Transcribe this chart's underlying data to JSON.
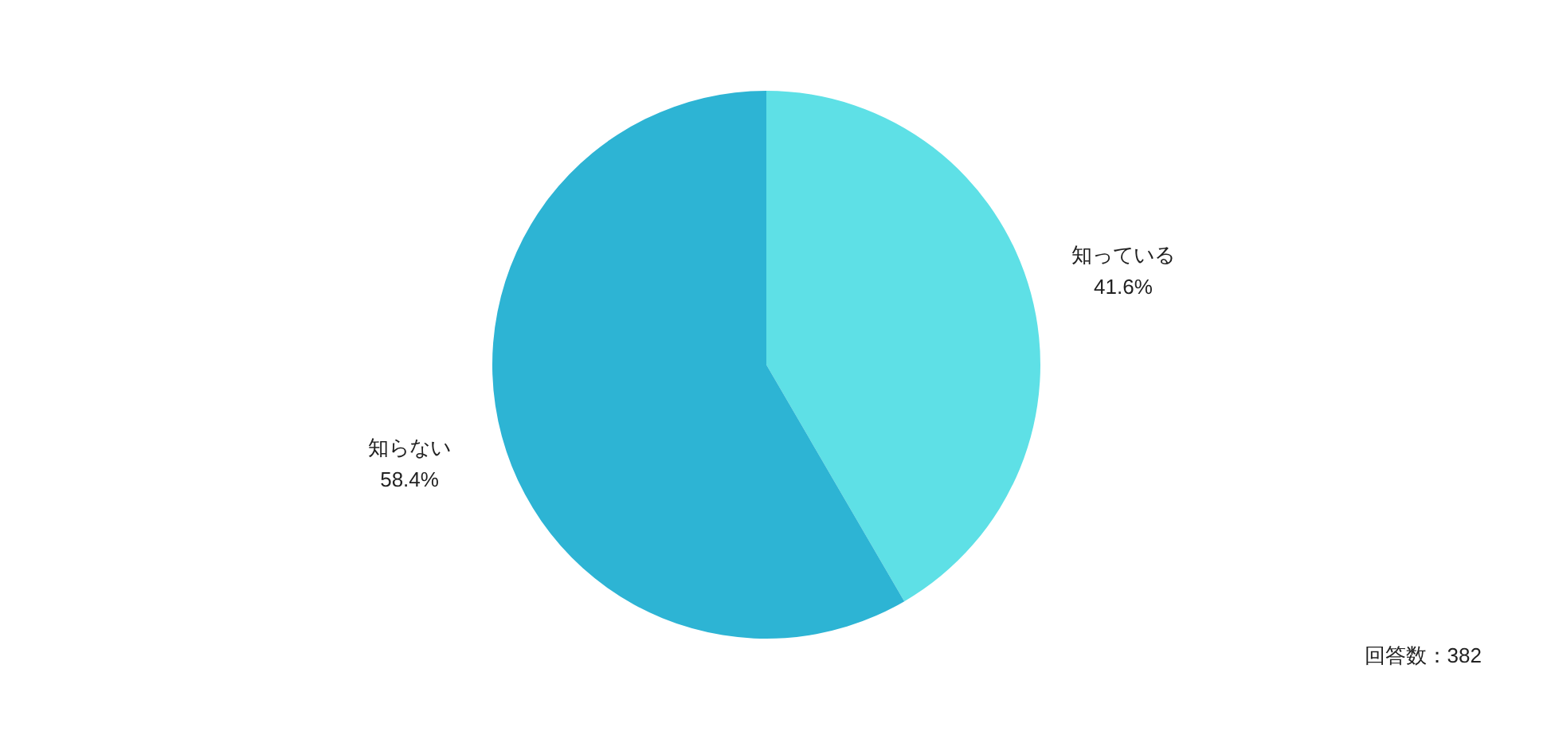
{
  "chart_data": {
    "type": "pie",
    "categories": [
      "知っている",
      "知らない"
    ],
    "values": [
      41.6,
      58.4
    ],
    "value_labels": [
      "41.6%",
      "58.4%"
    ],
    "colors": [
      "#5ee0e6",
      "#2db4d4"
    ],
    "annotations": [
      "回答数：382"
    ]
  }
}
